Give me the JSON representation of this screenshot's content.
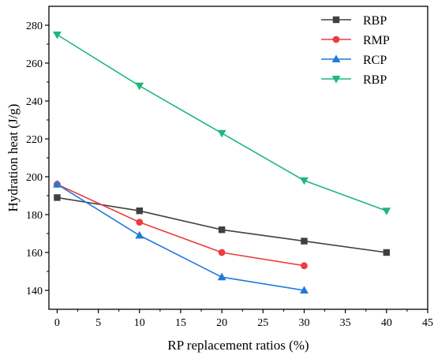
{
  "chart_data": {
    "type": "line",
    "title": "",
    "xlabel": "RP replacement ratios (%)",
    "ylabel": "Hydration heat (J/g)",
    "xlim": [
      -1,
      45
    ],
    "ylim": [
      130,
      290
    ],
    "xticks": [
      0,
      5,
      10,
      15,
      20,
      25,
      30,
      35,
      40,
      45
    ],
    "yticks": [
      140,
      160,
      180,
      200,
      220,
      240,
      260,
      280
    ],
    "legend_position": "top-right",
    "grid": false,
    "series": [
      {
        "name": "RBP",
        "color": "#404040",
        "marker": "square",
        "x": [
          0,
          10,
          20,
          30,
          40
        ],
        "values": [
          189,
          182,
          172,
          166,
          160
        ]
      },
      {
        "name": "RMP",
        "color": "#ee3b3b",
        "marker": "circle",
        "x": [
          0,
          10,
          20,
          30
        ],
        "values": [
          196,
          176,
          160,
          153
        ]
      },
      {
        "name": "RCP",
        "color": "#1e7bdc",
        "marker": "triangle-up",
        "x": [
          0,
          10,
          20,
          30
        ],
        "values": [
          196,
          169,
          147,
          140
        ]
      },
      {
        "name": "RBP",
        "color": "#1fb87a",
        "marker": "triangle-down",
        "x": [
          0,
          10,
          20,
          30,
          40
        ],
        "values": [
          275,
          248,
          223,
          198,
          182
        ]
      }
    ]
  }
}
